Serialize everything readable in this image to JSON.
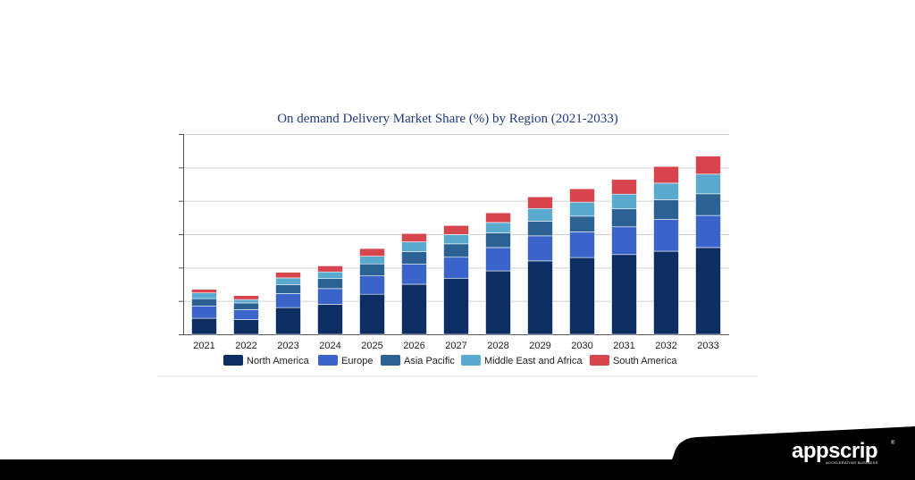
{
  "chart_data": {
    "type": "bar",
    "stacked": true,
    "title": "On demand Delivery Market Share (%) by Region (2021-2033)",
    "categories": [
      "2021",
      "2022",
      "2023",
      "2024",
      "2025",
      "2026",
      "2027",
      "2028",
      "2029",
      "2030",
      "2031",
      "2032",
      "2033"
    ],
    "ylim": [
      0,
      6
    ],
    "y_tick_labels_shown": false,
    "grid": true,
    "legend_position": "bottom",
    "series": [
      {
        "name": "North America",
        "color": "#0d2e63",
        "values": [
          0.48,
          0.44,
          0.8,
          0.9,
          1.2,
          1.5,
          1.68,
          1.9,
          2.2,
          2.3,
          2.39,
          2.49,
          2.6
        ]
      },
      {
        "name": "Europe",
        "color": "#3a64c9",
        "values": [
          0.37,
          0.3,
          0.42,
          0.47,
          0.55,
          0.6,
          0.63,
          0.7,
          0.75,
          0.77,
          0.83,
          0.95,
          0.96
        ]
      },
      {
        "name": "Asia Pacific",
        "color": "#2c6193",
        "values": [
          0.22,
          0.2,
          0.27,
          0.3,
          0.36,
          0.38,
          0.4,
          0.44,
          0.44,
          0.47,
          0.54,
          0.59,
          0.65
        ]
      },
      {
        "name": "Middle East and Africa",
        "color": "#5aa9cf",
        "values": [
          0.17,
          0.1,
          0.2,
          0.2,
          0.23,
          0.29,
          0.28,
          0.31,
          0.38,
          0.42,
          0.44,
          0.5,
          0.59
        ]
      },
      {
        "name": "South America",
        "color": "#d8444d",
        "values": [
          0.11,
          0.12,
          0.17,
          0.18,
          0.23,
          0.25,
          0.27,
          0.29,
          0.35,
          0.4,
          0.44,
          0.5,
          0.54
        ]
      }
    ]
  },
  "brand": {
    "name": "appscrip",
    "tagline": "ACCELERATING BUSINESS",
    "registered_mark": "®"
  }
}
